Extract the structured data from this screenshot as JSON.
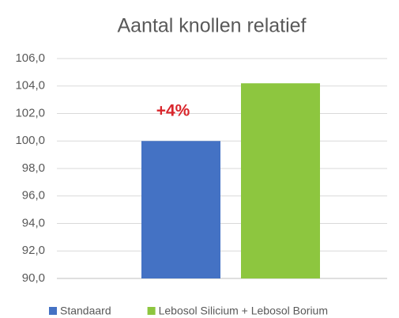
{
  "chart_data": {
    "type": "bar",
    "title": "Aantal knollen relatief",
    "categories": [
      null
    ],
    "series": [
      {
        "name": "Standaard",
        "color": "#4472c4",
        "values": [
          100.0
        ]
      },
      {
        "name": "Lebosol Silicium + Lebosol Borium",
        "color": "#8dc63f",
        "values": [
          104.2
        ]
      }
    ],
    "annotation": "+4%",
    "ylim": [
      90,
      106
    ],
    "yticks": [
      {
        "value": 90,
        "label": "90,0"
      },
      {
        "value": 92,
        "label": "92,0"
      },
      {
        "value": 94,
        "label": "94,0"
      },
      {
        "value": 96,
        "label": "96,0"
      },
      {
        "value": 98,
        "label": "98,0"
      },
      {
        "value": 100,
        "label": "100,0"
      },
      {
        "value": 102,
        "label": "102,0"
      },
      {
        "value": 104,
        "label": "104,0"
      },
      {
        "value": 106,
        "label": "106,0"
      }
    ],
    "grid": true,
    "legend": "bottom"
  }
}
